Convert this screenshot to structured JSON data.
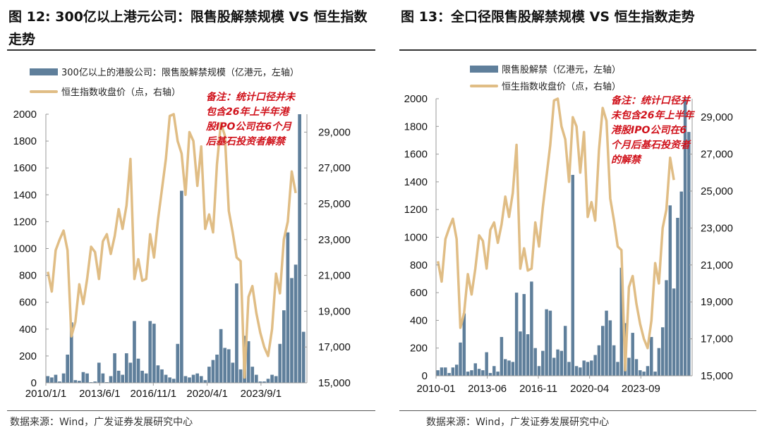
{
  "chart_data": [
    {
      "type": "bar+line",
      "title": "图 12: 300亿以上港元公司：限售股解禁规模 VS 恒生指数走势",
      "legend": {
        "bar": "300亿以上的港股公司：限售股解禁规模（亿港元，左轴）",
        "line": "恒生指数收盘价（点，右轴）",
        "placement": "top"
      },
      "note": "备注：统计口径并未包含26年上半年港股IPO公司在6个月后基石投资者解禁",
      "source": "数据来源：Wind，广发证券发展研究中心",
      "xlabels": [
        "2010/1/1",
        "2013/6/1",
        "2016/11/1",
        "2020/4/1",
        "2023/9/1"
      ],
      "xlabel_years": [
        2010.0,
        2013.42,
        2016.83,
        2020.25,
        2023.67
      ],
      "xrange": [
        2010,
        2026.5
      ],
      "ylim_left": [
        0,
        2000
      ],
      "yticks_left": [
        "0",
        "200",
        "400",
        "600",
        "800",
        "1000",
        "1200",
        "1400",
        "1600",
        "1800",
        "2000"
      ],
      "ylim_right": [
        15000,
        30000
      ],
      "yticks_right": [
        "15,000",
        "17,000",
        "19,000",
        "21,000",
        "23,000",
        "25,000",
        "27,000",
        "29,000"
      ],
      "bar_frequency": "quarterly from 2010Q1",
      "bars": [
        50,
        40,
        60,
        10,
        70,
        210,
        450,
        20,
        15,
        80,
        70,
        5,
        10,
        150,
        70,
        5,
        50,
        220,
        90,
        60,
        220,
        150,
        460,
        180,
        90,
        70,
        460,
        440,
        130,
        100,
        60,
        40,
        30,
        290,
        1430,
        50,
        40,
        60,
        70,
        50,
        20,
        120,
        170,
        210,
        400,
        260,
        250,
        150,
        740,
        100,
        350,
        310,
        120,
        60,
        10,
        10,
        30,
        60,
        50,
        290,
        540,
        1120,
        780,
        880,
        2000,
        380
      ]
    },
    {
      "type": "bar+line",
      "title": "图 13：全口径限售股解禁规模 VS 恒生指数走势",
      "legend": {
        "bar": "限售股解禁（亿港元，左轴）",
        "line": "恒生指数收盘价（点，右轴）",
        "placement": "top"
      },
      "note": "备注：统计口径并未包含26年上半年港股IPO公司在6个月后基石投资者的解禁",
      "source": "数据来源：Wind，广发证券发展研究中心",
      "xlabels": [
        "2010-01",
        "2013-06",
        "2016-11",
        "2020-04",
        "2023-09"
      ],
      "xlabel_years": [
        2010.0,
        2013.42,
        2016.83,
        2020.25,
        2023.67
      ],
      "xrange": [
        2010,
        2027
      ],
      "ylim_left": [
        0,
        2000
      ],
      "yticks_left": [
        "0",
        "200",
        "400",
        "600",
        "800",
        "1000",
        "1200",
        "1400",
        "1600",
        "1800",
        "2000"
      ],
      "ylim_right": [
        15000,
        30000
      ],
      "yticks_right": [
        "15,000",
        "17,000",
        "19,000",
        "21,000",
        "23,000",
        "25,000",
        "27,000",
        "29,000"
      ],
      "bar_frequency": "quarterly from 2010Q1",
      "bars": [
        40,
        60,
        60,
        20,
        60,
        80,
        240,
        450,
        30,
        40,
        90,
        50,
        40,
        170,
        20,
        70,
        30,
        280,
        120,
        110,
        100,
        600,
        320,
        590,
        300,
        680,
        200,
        70,
        180,
        480,
        470,
        130,
        190,
        180,
        360,
        100,
        1450,
        70,
        60,
        110,
        100,
        110,
        150,
        220,
        360,
        470,
        400,
        220,
        100,
        780,
        380,
        130,
        310,
        120,
        40,
        30,
        70,
        280,
        30,
        200,
        350,
        690,
        1230,
        630,
        1140,
        1330,
        2000,
        1760
      ]
    }
  ],
  "hsi": {
    "frequency": "quarterly from 2010Q1",
    "values": [
      21200,
      20100,
      22400,
      23000,
      23500,
      22400,
      17600,
      18400,
      20500,
      19400,
      20800,
      22600,
      22300,
      20800,
      22900,
      23300,
      22200,
      23200,
      24700,
      23600,
      24900,
      27500,
      20800,
      21900,
      20700,
      20800,
      23300,
      22000,
      24100,
      25800,
      27500,
      29900,
      30000,
      28500,
      27800,
      25500,
      29000,
      28500,
      26000,
      28200,
      23600,
      24400,
      23400,
      27200,
      29500,
      28800,
      24600,
      23400,
      22000,
      21800,
      15300,
      19800,
      20400,
      18900,
      17800,
      17000,
      16500,
      18000,
      21100,
      20000,
      23000,
      24000,
      26800,
      25600
    ]
  },
  "colors": {
    "bar": "#5f7f9b",
    "line": "#e0bd85",
    "note": "#d0121b"
  }
}
